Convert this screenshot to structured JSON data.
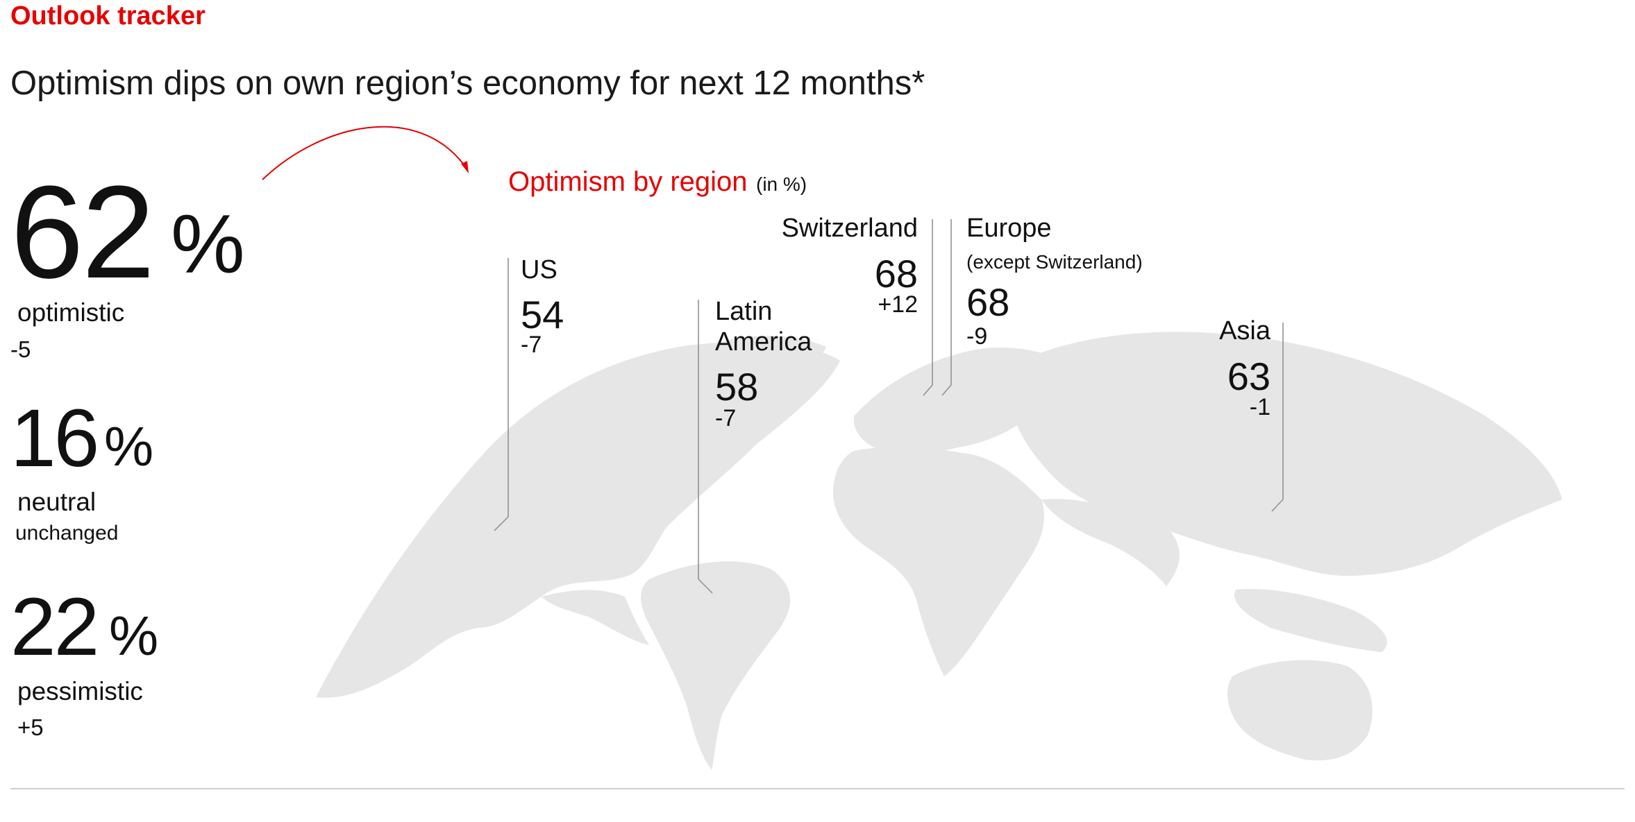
{
  "kicker": "Outlook tracker",
  "headline": "Optimism dips on own region’s economy for next 12 months*",
  "map_title": "Optimism by region",
  "map_unit": "(in %)",
  "percent_sign": "%",
  "colors": {
    "accent": "#e60000",
    "map": "#e6e6e6",
    "leader": "#8c8c8c",
    "rule": "#cfcfcf"
  },
  "chart_data": {
    "type": "table",
    "overall": [
      {
        "label": "optimistic",
        "value": 62,
        "value_text": "62",
        "change": "-5"
      },
      {
        "label": "neutral",
        "value": 16,
        "value_text": "16",
        "change": "unchanged"
      },
      {
        "label": "pessimistic",
        "value": 22,
        "value_text": "22",
        "change": "+5"
      }
    ],
    "regions": [
      {
        "name": "US",
        "value": 54,
        "value_text": "54",
        "change": "-7"
      },
      {
        "name": "Latin America",
        "name_line1": "Latin",
        "name_line2": "America",
        "value": 58,
        "value_text": "58",
        "change": "-7"
      },
      {
        "name": "Switzerland",
        "value": 68,
        "value_text": "68",
        "change": "+12"
      },
      {
        "name": "Europe",
        "subtitle": "(except Switzerland)",
        "value": 68,
        "value_text": "68",
        "change": "-9"
      },
      {
        "name": "Asia",
        "value": 63,
        "value_text": "63",
        "change": "-1"
      }
    ]
  }
}
